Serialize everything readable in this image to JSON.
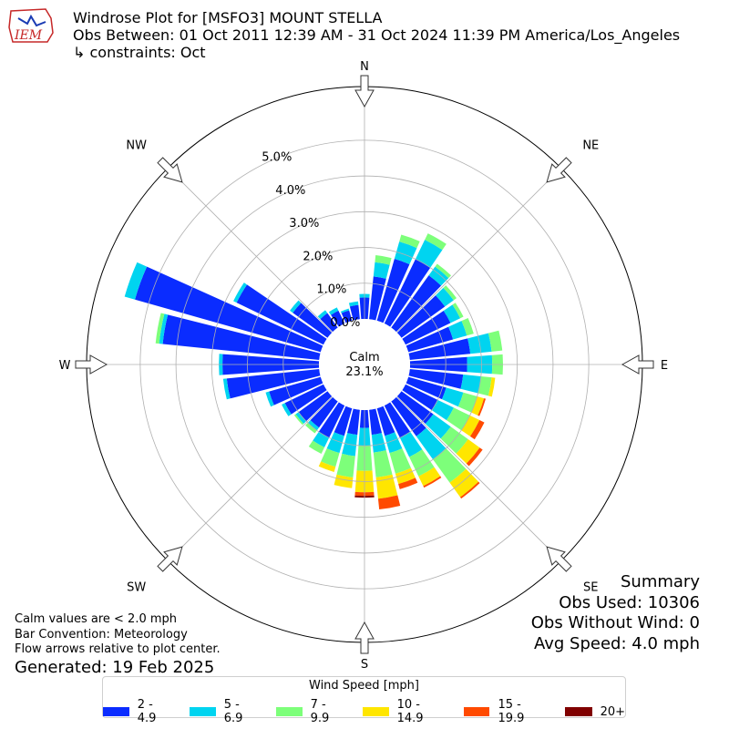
{
  "logo": {
    "text": "IEM",
    "icon": "iem-logo-icon",
    "colors": {
      "outline": "#c62828",
      "bird": "#1a3bb3"
    }
  },
  "header": {
    "title": "Windrose Plot for [MSFO3] MOUNT STELLA",
    "period": "Obs Between: 01 Oct 2011 12:39 AM - 31 Oct 2024 11:39 PM America/Los_Angeles",
    "constraints": "↳ constraints: Oct"
  },
  "summary": {
    "heading": "Summary",
    "obs_used": "Obs Used: 10306",
    "obs_without_wind": "Obs Without Wind: 0",
    "avg_speed": "Avg Speed: 4.0 mph"
  },
  "notes": {
    "calm": "Calm values are < 2.0 mph",
    "convention": "Bar Convention: Meteorology",
    "arrows": "Flow arrows relative to plot center.",
    "generated": "Generated: 19 Feb 2025"
  },
  "legend": {
    "title": "Wind Speed [mph]",
    "items": [
      {
        "label": "2 - 4.9",
        "color": "#0a2cff"
      },
      {
        "label": "5 - 6.9",
        "color": "#00d4f0"
      },
      {
        "label": "7 - 9.9",
        "color": "#7dff7a"
      },
      {
        "label": "10 - 14.9",
        "color": "#ffe600"
      },
      {
        "label": "15 - 19.9",
        "color": "#ff4a00"
      },
      {
        "label": "20+",
        "color": "#800000"
      }
    ]
  },
  "chart_data": {
    "type": "windrose",
    "title": "Windrose Plot for [MSFO3] MOUNT STELLA",
    "calm": {
      "label": "Calm",
      "value": "23.1%"
    },
    "radial_ticks": [
      "0.0%",
      "1.0%",
      "2.0%",
      "3.0%",
      "4.0%",
      "5.0%"
    ],
    "radial_values": [
      0,
      1,
      2,
      3,
      4,
      5
    ],
    "rmax": 6.5,
    "cardinal_labels": [
      "N",
      "NE",
      "E",
      "SE",
      "S",
      "SW",
      "W",
      "NW"
    ],
    "direction_unit": "degrees from north (36 bins, 10° each)",
    "speed_bins": [
      "2 - 4.9",
      "5 - 6.9",
      "7 - 9.9",
      "10 - 14.9",
      "15 - 19.9",
      "20+"
    ],
    "bin_colors": [
      "#0a2cff",
      "#00d4f0",
      "#7dff7a",
      "#ffe600",
      "#ff4a00",
      "#800000"
    ],
    "grid": true,
    "legend_position": "bottom",
    "directions": [
      {
        "dir": 0,
        "values": [
          0.6,
          0.1,
          0,
          0,
          0,
          0
        ]
      },
      {
        "dir": 10,
        "values": [
          1.2,
          0.4,
          0.2,
          0,
          0,
          0
        ]
      },
      {
        "dir": 20,
        "values": [
          1.8,
          0.5,
          0.2,
          0,
          0,
          0
        ]
      },
      {
        "dir": 30,
        "values": [
          2.0,
          0.6,
          0.2,
          0,
          0,
          0
        ]
      },
      {
        "dir": 40,
        "values": [
          1.8,
          0.3,
          0.1,
          0,
          0,
          0
        ]
      },
      {
        "dir": 50,
        "values": [
          1.5,
          0.3,
          0.1,
          0,
          0,
          0
        ]
      },
      {
        "dir": 60,
        "values": [
          1.4,
          0.3,
          0.1,
          0,
          0,
          0
        ]
      },
      {
        "dir": 70,
        "values": [
          1.3,
          0.4,
          0.2,
          0,
          0,
          0
        ]
      },
      {
        "dir": 80,
        "values": [
          1.7,
          0.6,
          0.3,
          0,
          0,
          0
        ]
      },
      {
        "dir": 90,
        "values": [
          1.6,
          0.7,
          0.3,
          0,
          0,
          0
        ]
      },
      {
        "dir": 100,
        "values": [
          1.5,
          0.5,
          0.3,
          0.1,
          0,
          0
        ]
      },
      {
        "dir": 110,
        "values": [
          1.1,
          0.5,
          0.4,
          0.2,
          0.05,
          0
        ]
      },
      {
        "dir": 120,
        "values": [
          1.0,
          0.5,
          0.5,
          0.3,
          0.15,
          0
        ]
      },
      {
        "dir": 130,
        "values": [
          1.1,
          0.6,
          0.6,
          0.4,
          0.1,
          0
        ]
      },
      {
        "dir": 140,
        "values": [
          1.2,
          0.8,
          0.8,
          0.5,
          0.05,
          0
        ]
      },
      {
        "dir": 150,
        "values": [
          1.0,
          0.6,
          0.6,
          0.3,
          0.05,
          0
        ]
      },
      {
        "dir": 160,
        "values": [
          0.8,
          0.5,
          0.6,
          0.3,
          0.15,
          0
        ]
      },
      {
        "dir": 170,
        "values": [
          0.7,
          0.5,
          0.7,
          0.6,
          0.3,
          0
        ]
      },
      {
        "dir": 180,
        "values": [
          0.5,
          0.5,
          0.7,
          0.6,
          0.1,
          0.05
        ]
      },
      {
        "dir": 190,
        "values": [
          0.7,
          0.6,
          0.6,
          0.3,
          0,
          0
        ]
      },
      {
        "dir": 200,
        "values": [
          0.8,
          0.5,
          0.4,
          0.15,
          0,
          0
        ]
      },
      {
        "dir": 210,
        "values": [
          1.0,
          0.3,
          0.2,
          0,
          0,
          0
        ]
      },
      {
        "dir": 220,
        "values": [
          0.9,
          0.1,
          0.1,
          0,
          0,
          0
        ]
      },
      {
        "dir": 230,
        "values": [
          1.0,
          0.1,
          0.05,
          0,
          0,
          0
        ]
      },
      {
        "dir": 240,
        "values": [
          1.2,
          0.1,
          0,
          0,
          0,
          0
        ]
      },
      {
        "dir": 250,
        "values": [
          1.5,
          0.1,
          0,
          0,
          0,
          0
        ]
      },
      {
        "dir": 260,
        "values": [
          2.6,
          0.1,
          0,
          0,
          0,
          0
        ]
      },
      {
        "dir": 270,
        "values": [
          2.7,
          0.1,
          0,
          0,
          0,
          0
        ]
      },
      {
        "dir": 280,
        "values": [
          4.4,
          0.1,
          0.1,
          0,
          0,
          0
        ]
      },
      {
        "dir": 290,
        "values": [
          5.4,
          0.3,
          0,
          0,
          0,
          0
        ]
      },
      {
        "dir": 300,
        "values": [
          2.7,
          0.1,
          0,
          0,
          0,
          0
        ]
      },
      {
        "dir": 310,
        "values": [
          1.2,
          0.1,
          0,
          0,
          0,
          0
        ]
      },
      {
        "dir": 320,
        "values": [
          0.5,
          0.1,
          0,
          0,
          0,
          0
        ]
      },
      {
        "dir": 330,
        "values": [
          0.4,
          0.1,
          0,
          0,
          0,
          0
        ]
      },
      {
        "dir": 340,
        "values": [
          0.3,
          0.05,
          0,
          0,
          0,
          0
        ]
      },
      {
        "dir": 350,
        "values": [
          0.4,
          0.1,
          0,
          0,
          0,
          0
        ]
      }
    ]
  }
}
